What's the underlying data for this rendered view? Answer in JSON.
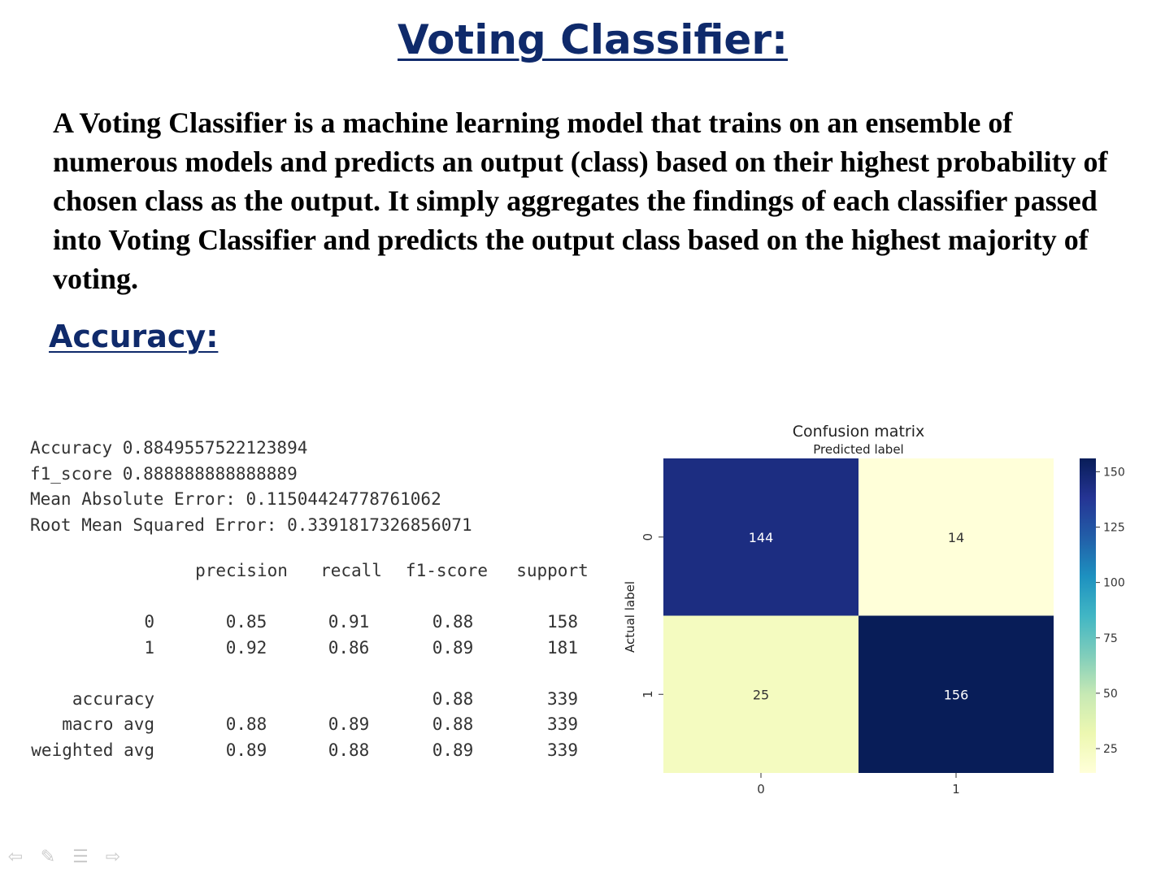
{
  "slide": {
    "title": "Voting Classifier:",
    "description": "A Voting Classifier is a machine learning model that trains on an ensemble of numerous models and predicts an output (class) based on their highest probability of chosen class as the output. It simply aggregates the findings of each classifier passed into Voting Classifier and predicts the output class based on the highest majority of voting.",
    "section_heading": "Accuracy:"
  },
  "metrics": [
    "Accuracy 0.8849557522123894",
    "f1_score 0.888888888888889",
    "Mean Absolute Error: 0.11504424778761062",
    "Root Mean Squared Error: 0.3391817326856071"
  ],
  "report": {
    "headers": [
      "precision",
      "recall",
      "f1-score",
      "support"
    ],
    "class_rows": [
      {
        "label": "0",
        "precision": "0.85",
        "recall": "0.91",
        "f1": "0.88",
        "support": "158"
      },
      {
        "label": "1",
        "precision": "0.92",
        "recall": "0.86",
        "f1": "0.89",
        "support": "181"
      }
    ],
    "summary_rows": [
      {
        "label": "accuracy",
        "precision": "",
        "recall": "",
        "f1": "0.88",
        "support": "339"
      },
      {
        "label": "macro avg",
        "precision": "0.88",
        "recall": "0.89",
        "f1": "0.88",
        "support": "339"
      },
      {
        "label": "weighted avg",
        "precision": "0.89",
        "recall": "0.88",
        "f1": "0.89",
        "support": "339"
      }
    ]
  },
  "chart_data": {
    "type": "heatmap",
    "title": "Confusion matrix",
    "xlabel": "Predicted label",
    "ylabel": "Actual label",
    "x_categories": [
      "0",
      "1"
    ],
    "y_categories": [
      "0",
      "1"
    ],
    "values": [
      [
        144,
        14
      ],
      [
        25,
        156
      ]
    ],
    "colorbar": {
      "range": [
        14,
        156
      ],
      "ticks": [
        150,
        125,
        100,
        75,
        50,
        25
      ],
      "tick_labels": [
        "150",
        "125",
        "100",
        "75",
        "50",
        "25"
      ],
      "colormap": "YlGnBu"
    },
    "xlabel_position": "top",
    "colors": {
      "low": "#ffffd9",
      "high": "#081d58"
    }
  },
  "nav": {
    "icons": [
      "back-arrow-icon",
      "pen-icon",
      "menu-icon",
      "forward-arrow-icon"
    ]
  }
}
